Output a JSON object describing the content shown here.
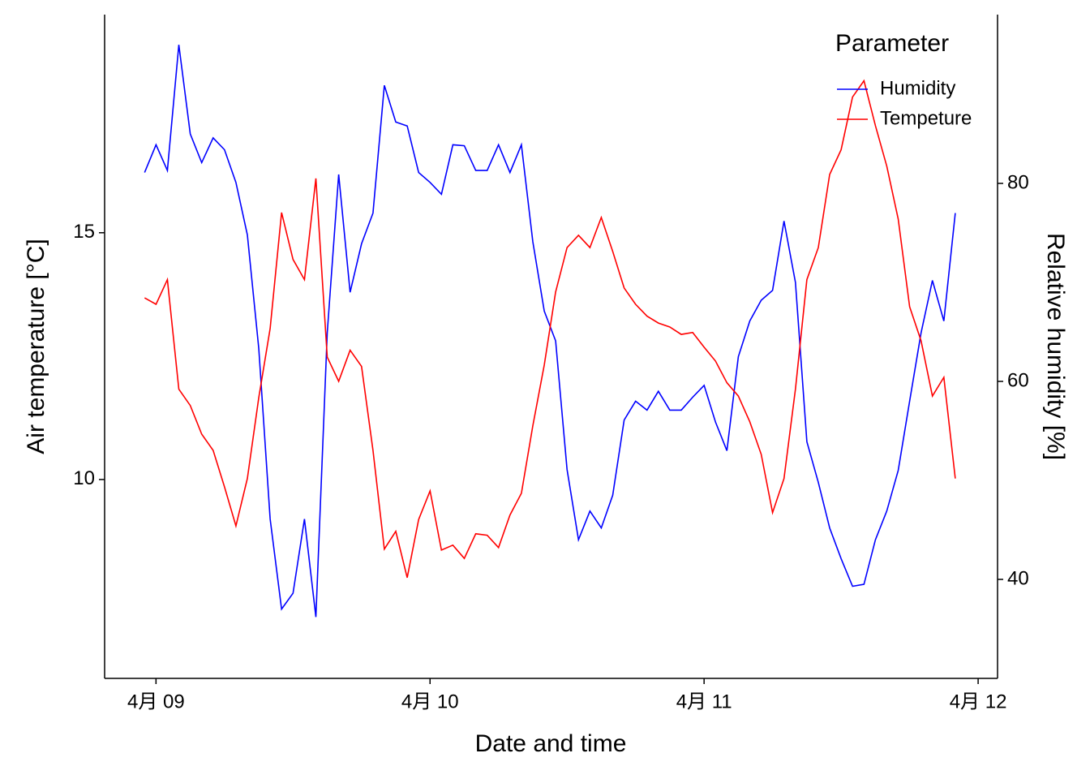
{
  "chart_data": {
    "type": "line",
    "xlabel": "Date and time",
    "ylabel": "Air temperature [°C]",
    "y2label": "Relative humidity [%]",
    "legend_title": "Parameter",
    "legend_position": "top-right",
    "x": [
      -1,
      0,
      1,
      2,
      3,
      4,
      5,
      6,
      7,
      8,
      9,
      10,
      11,
      12,
      13,
      14,
      15,
      16,
      17,
      18,
      19,
      20,
      21,
      22,
      23,
      24,
      25,
      26,
      27,
      28,
      29,
      30,
      31,
      32,
      33,
      34,
      35,
      36,
      37,
      38,
      39,
      40,
      41,
      42,
      43,
      44,
      45,
      46,
      47,
      48,
      49,
      50,
      51,
      52,
      53,
      54,
      55,
      56,
      57,
      58,
      59,
      60,
      61,
      62,
      63,
      64,
      65,
      66,
      67,
      68,
      69,
      70
    ],
    "xlim": [
      -4.5,
      73.7
    ],
    "xticks": [
      {
        "value": 0,
        "label": "4月 09"
      },
      {
        "value": 24,
        "label": "4月 10"
      },
      {
        "value": 48,
        "label": "4月 11"
      },
      {
        "value": 72,
        "label": "4月 12"
      }
    ],
    "ylim": [
      5.97,
      19.42
    ],
    "yticks": [
      10,
      15
    ],
    "y2lim": [
      30,
      97.05
    ],
    "y2ticks": [
      40,
      60,
      80
    ],
    "series": [
      {
        "name": "Humidity",
        "color": "#0000ff",
        "axis": "y2",
        "values": [
          81.1,
          83.9,
          81.3,
          94.0,
          85.0,
          82.1,
          84.6,
          83.4,
          80.1,
          74.8,
          63.3,
          46.1,
          37.0,
          38.6,
          46.1,
          36.2,
          64.9,
          80.9,
          69.0,
          73.9,
          77.0,
          89.9,
          86.2,
          85.8,
          81.1,
          80.1,
          78.9,
          83.9,
          83.8,
          81.3,
          81.3,
          83.9,
          81.1,
          83.9,
          74.1,
          67.1,
          64.1,
          51.1,
          44.0,
          46.9,
          45.2,
          48.5,
          56.1,
          58.0,
          57.1,
          59.0,
          57.1,
          57.1,
          58.4,
          59.6,
          55.9,
          53.0,
          62.5,
          66.1,
          68.2,
          69.2,
          76.2,
          70.0,
          53.9,
          49.8,
          45.2,
          42.1,
          39.3,
          39.5,
          44.0,
          46.9,
          51.0,
          58.0,
          64.9,
          70.2,
          66.1,
          77.0
        ]
      },
      {
        "name": "Tempeture",
        "color": "#ff0000",
        "values": [
          13.68,
          13.55,
          14.05,
          11.83,
          11.5,
          10.92,
          10.59,
          9.85,
          9.06,
          10.02,
          11.66,
          13.06,
          15.41,
          14.46,
          14.05,
          16.1,
          12.48,
          11.99,
          12.62,
          12.29,
          10.59,
          8.59,
          8.95,
          8.01,
          9.19,
          9.77,
          8.57,
          8.67,
          8.4,
          8.9,
          8.87,
          8.62,
          9.28,
          9.72,
          11.09,
          12.32,
          13.8,
          14.7,
          14.95,
          14.7,
          15.31,
          14.62,
          13.88,
          13.55,
          13.31,
          13.17,
          13.09,
          12.94,
          12.98,
          12.68,
          12.4,
          11.96,
          11.69,
          11.17,
          10.51,
          9.33,
          10.02,
          11.83,
          14.05,
          14.7,
          16.18,
          16.68,
          17.75,
          18.08,
          17.17,
          16.35,
          15.28,
          13.5,
          12.81,
          11.69,
          12.07,
          10.02
        ]
      }
    ]
  }
}
